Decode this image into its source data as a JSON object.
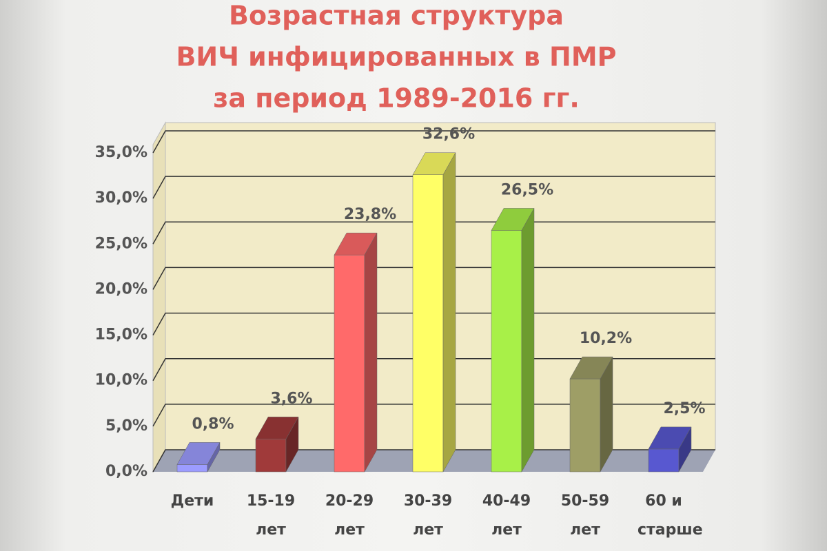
{
  "chart_data": {
    "type": "bar3d",
    "title": [
      "Возрастная структура",
      "ВИЧ инфицированных в ПМР",
      "за период 1989-2016 гг."
    ],
    "categories": [
      "Дети",
      "15-19 лет",
      "20-29 лет",
      "30-39 лет",
      "40-49 лет",
      "50-59 лет",
      "60 и старше"
    ],
    "values": [
      0.8,
      3.6,
      23.8,
      32.6,
      26.5,
      10.2,
      2.5
    ],
    "value_labels": [
      "0,8%",
      "3,6%",
      "23,8%",
      "32,6%",
      "26,5%",
      "10,2%",
      "2,5%"
    ],
    "colors": [
      "#9c9cff",
      "#a03a3a",
      "#ff6a6a",
      "#ffff66",
      "#a8f048",
      "#9e9e66",
      "#5858d0"
    ],
    "ylim": [
      0,
      35
    ],
    "yticks": [
      {
        "value": 0,
        "label": "0,0%"
      },
      {
        "value": 5,
        "label": "5,0%"
      },
      {
        "value": 10,
        "label": "10,0%"
      },
      {
        "value": 15,
        "label": "15,0%"
      },
      {
        "value": 20,
        "label": "20,0%"
      },
      {
        "value": 25,
        "label": "25,0%"
      },
      {
        "value": 30,
        "label": "30,0%"
      },
      {
        "value": 35,
        "label": "35,0%"
      }
    ],
    "grid": true
  }
}
